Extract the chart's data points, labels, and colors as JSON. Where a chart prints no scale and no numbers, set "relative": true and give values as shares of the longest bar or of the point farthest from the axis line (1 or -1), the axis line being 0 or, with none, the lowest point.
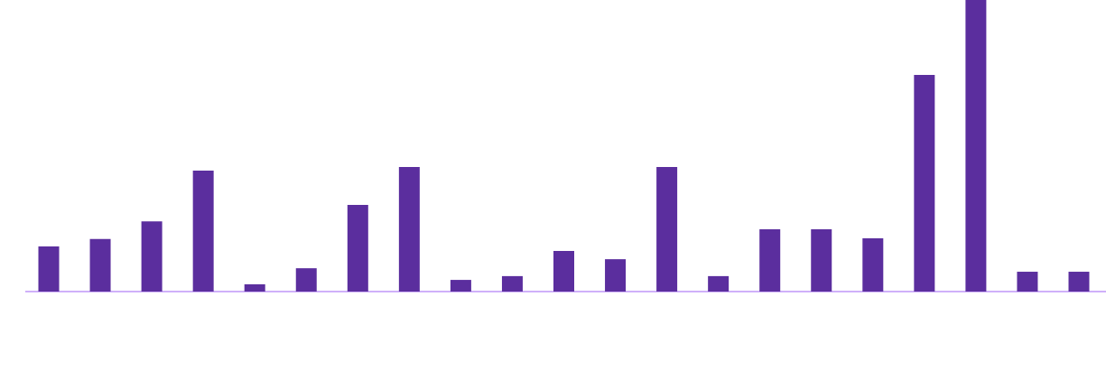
{
  "chart_data": {
    "type": "bar",
    "relative": true,
    "color": "#5b2e9e",
    "categories": [
      null,
      null,
      null,
      null,
      null,
      null,
      null,
      null,
      null,
      null,
      null,
      null,
      null,
      null,
      null,
      null,
      null,
      null,
      null,
      null,
      null
    ],
    "values": [
      0.155,
      0.18,
      0.241,
      0.415,
      0.025,
      0.08,
      0.297,
      0.427,
      0.04,
      0.053,
      0.139,
      0.111,
      0.427,
      0.053,
      0.214,
      0.214,
      0.183,
      0.743,
      1,
      0.068,
      0.068
    ]
  }
}
